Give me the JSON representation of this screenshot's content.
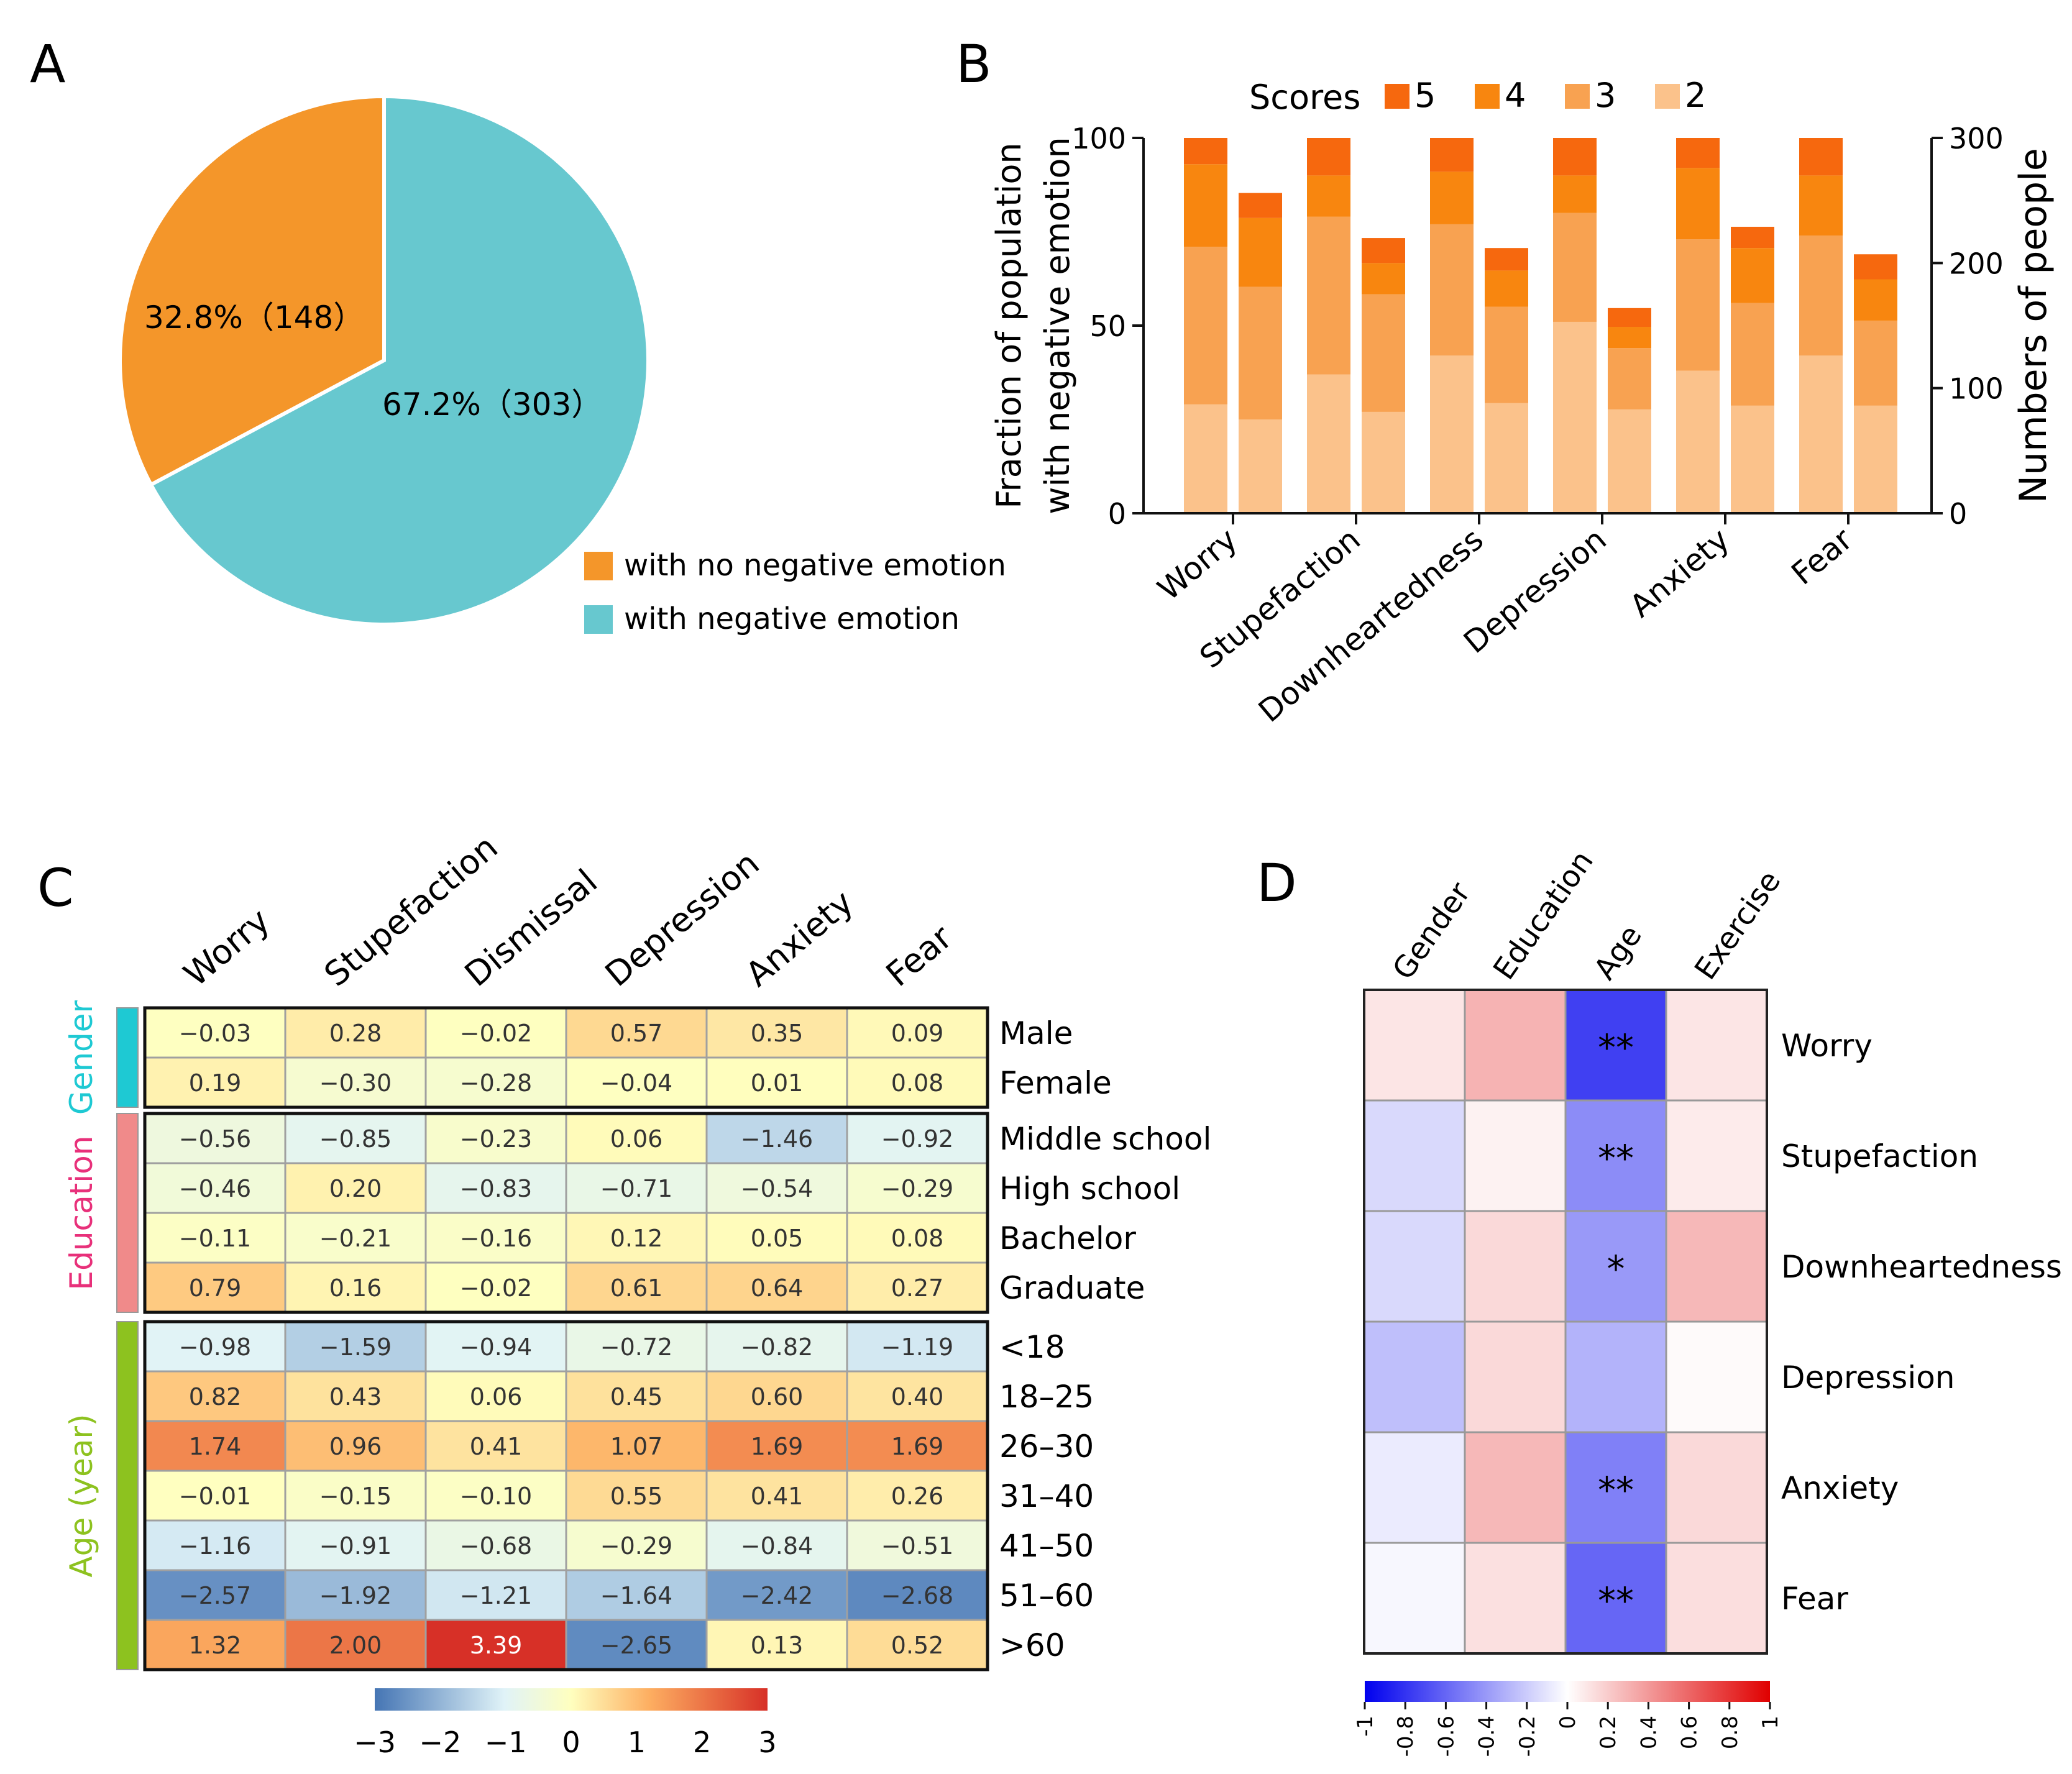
{
  "panel_labels": {
    "a": "A",
    "b": "B",
    "c": "C",
    "d": "D"
  },
  "chart_data": [
    {
      "panel": "A",
      "type": "pie",
      "slices": [
        {
          "label": "with no negative emotion",
          "percent": 32.8,
          "count": 148,
          "text": "32.8%（148）",
          "color": "#f4962a"
        },
        {
          "label": "with negative emotion",
          "percent": 67.2,
          "count": 303,
          "text": "67.2%（303）",
          "color": "#67c8cf"
        }
      ]
    },
    {
      "panel": "B",
      "type": "bar",
      "stacked": true,
      "legend_title": "Scores",
      "categories": [
        "Worry",
        "Stupefaction",
        "Downheartedness",
        "Depression",
        "Anxiety",
        "Fear"
      ],
      "ylabel": "Fraction of population\nwith negative emotion",
      "ylabel_lines": [
        "Fraction of population",
        "with negative emotion"
      ],
      "y2label": "Numbers of people",
      "ylim": [
        0,
        100
      ],
      "y2lim": [
        0,
        300
      ],
      "yticks": [
        0,
        50,
        100
      ],
      "y2ticks": [
        0,
        100,
        200,
        300
      ],
      "score_levels": [
        "2",
        "3",
        "4",
        "5"
      ],
      "colors": {
        "2": "#fbc28b",
        "3": "#f8a251",
        "4": "#f8860f",
        "5": "#f6680e"
      },
      "fraction_bars": [
        {
          "category": "Worry",
          "cumulative": [
            29,
            71,
            93,
            100
          ]
        },
        {
          "category": "Stupefaction",
          "cumulative": [
            37,
            79,
            90,
            100
          ]
        },
        {
          "category": "Downheartedness",
          "cumulative": [
            42,
            77,
            91,
            100
          ]
        },
        {
          "category": "Depression",
          "cumulative": [
            51,
            80,
            90,
            100
          ]
        },
        {
          "category": "Anxiety",
          "cumulative": [
            38,
            73,
            92,
            100
          ]
        },
        {
          "category": "Fear",
          "cumulative": [
            42,
            74,
            90,
            100
          ]
        }
      ],
      "count_bars": [
        {
          "category": "Worry",
          "cumulative": [
            75,
            181,
            236,
            256
          ]
        },
        {
          "category": "Stupefaction",
          "cumulative": [
            81,
            175,
            200,
            220
          ]
        },
        {
          "category": "Downheartedness",
          "cumulative": [
            88,
            165,
            194,
            212
          ]
        },
        {
          "category": "Depression",
          "cumulative": [
            83,
            132,
            149,
            164
          ]
        },
        {
          "category": "Anxiety",
          "cumulative": [
            86,
            168,
            212,
            229
          ]
        },
        {
          "category": "Fear",
          "cumulative": [
            86,
            154,
            187,
            207
          ]
        }
      ]
    },
    {
      "panel": "C",
      "type": "heatmap",
      "columns": [
        "Worry",
        "Stupefaction",
        "Dismissal",
        "Depression",
        "Anxiety",
        "Fear"
      ],
      "groups": [
        {
          "name": "Gender",
          "color": "#1ec9d3",
          "rows": [
            {
              "label": "Male",
              "values": [
                -0.03,
                0.28,
                -0.02,
                0.57,
                0.35,
                0.09
              ]
            },
            {
              "label": "Female",
              "values": [
                0.19,
                -0.3,
                -0.28,
                -0.04,
                0.01,
                0.08
              ]
            }
          ]
        },
        {
          "name": "Education",
          "color": "#f08a8a",
          "rows": [
            {
              "label": "Middle school",
              "values": [
                -0.56,
                -0.85,
                -0.23,
                0.06,
                -1.46,
                -0.92
              ]
            },
            {
              "label": "High school",
              "values": [
                -0.46,
                0.2,
                -0.83,
                -0.71,
                -0.54,
                -0.29
              ]
            },
            {
              "label": "Bachelor",
              "values": [
                -0.11,
                -0.21,
                -0.16,
                0.12,
                0.05,
                0.08
              ]
            },
            {
              "label": "Graduate",
              "values": [
                0.79,
                0.16,
                -0.02,
                0.61,
                0.64,
                0.27
              ]
            }
          ]
        },
        {
          "name": "Age (year)",
          "color": "#8dc21f",
          "rows": [
            {
              "label": "<18",
              "values": [
                -0.98,
                -1.59,
                -0.94,
                -0.72,
                -0.82,
                -1.19
              ]
            },
            {
              "label": "18–25",
              "values": [
                0.82,
                0.43,
                0.06,
                0.45,
                0.6,
                0.4
              ]
            },
            {
              "label": "26–30",
              "values": [
                1.74,
                0.96,
                0.41,
                1.07,
                1.69,
                1.69
              ]
            },
            {
              "label": "31–40",
              "values": [
                -0.01,
                -0.15,
                -0.1,
                0.55,
                0.41,
                0.26
              ]
            },
            {
              "label": "41–50",
              "values": [
                -1.16,
                -0.91,
                -0.68,
                -0.29,
                -0.84,
                -0.51
              ]
            },
            {
              "label": "51–60",
              "values": [
                -2.57,
                -1.92,
                -1.21,
                -1.64,
                -2.42,
                -2.68
              ]
            },
            {
              "label": ">60",
              "values": [
                1.32,
                2.0,
                3.39,
                -2.65,
                0.13,
                0.52
              ]
            }
          ]
        }
      ],
      "group_label_colors": {
        "Gender": "#1ec9d3",
        "Education": "#e8307a",
        "Age (year)": "#8dc21f"
      },
      "colorbar": {
        "range": [
          -3,
          3
        ],
        "ticks": [
          "−3",
          "−2",
          "−1",
          "0",
          "1",
          "2",
          "3"
        ]
      }
    },
    {
      "panel": "D",
      "type": "heatmap",
      "columns": [
        "Gender",
        "Education",
        "Age",
        "Exercise"
      ],
      "rows": [
        "Worry",
        "Stupefaction",
        "Downheartedness",
        "Depression",
        "Anxiety",
        "Fear"
      ],
      "values": [
        [
          0.1,
          0.3,
          -0.75,
          0.1
        ],
        [
          -0.15,
          0.05,
          -0.45,
          0.08
        ],
        [
          -0.15,
          0.15,
          -0.4,
          0.28
        ],
        [
          -0.25,
          0.15,
          -0.3,
          0.02
        ],
        [
          -0.08,
          0.28,
          -0.5,
          0.15
        ],
        [
          -0.03,
          0.12,
          -0.6,
          0.13
        ]
      ],
      "significance": [
        [
          "",
          "",
          "**",
          ""
        ],
        [
          "",
          "",
          "**",
          ""
        ],
        [
          "",
          "",
          "*",
          ""
        ],
        [
          "",
          "",
          "",
          ""
        ],
        [
          "",
          "",
          "**",
          ""
        ],
        [
          "",
          "",
          "**",
          ""
        ]
      ],
      "colorbar": {
        "range": [
          -1,
          1
        ],
        "ticks": [
          "-1",
          "-0.8",
          "-0.6",
          "-0.4",
          "-0.2",
          "0",
          "0.2",
          "0.4",
          "0.6",
          "0.8",
          "1"
        ]
      }
    }
  ]
}
